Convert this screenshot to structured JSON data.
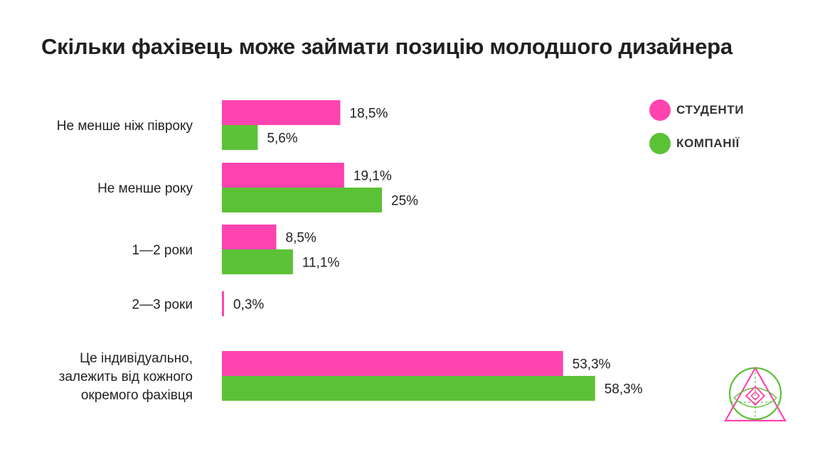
{
  "title": "Скільки фахівець може займати позицію молодшого дизайнера",
  "colors": {
    "students": "#FF44B0",
    "companies": "#5BC236",
    "text": "#222222"
  },
  "legend": [
    {
      "label": "СТУДЕНТИ",
      "color": "#FF44B0"
    },
    {
      "label": "КОМПАНІЇ",
      "color": "#5BC236"
    }
  ],
  "logo": {
    "icon": "triangle-circle-eye-logo"
  },
  "chart_data": {
    "type": "bar",
    "orientation": "horizontal",
    "title": "Скільки фахівець може займати позицію молодшого дизайнера",
    "legend_position": "top-right",
    "grid": false,
    "categories": [
      [
        "Не менше ніж півроку"
      ],
      [
        "Не менше року"
      ],
      [
        "1—2 роки"
      ],
      [
        "2—3 роки"
      ],
      [
        "Це індивідуально,",
        "залежить від кожного",
        "окремого фахівця"
      ]
    ],
    "series": [
      {
        "name": "СТУДЕНТИ",
        "color": "#FF44B0",
        "values": [
          18.5,
          19.1,
          8.5,
          0.3,
          53.3
        ],
        "labels": [
          "18,5%",
          "19,1%",
          "8,5%",
          "0,3%",
          "53,3%"
        ]
      },
      {
        "name": "КОМПАНІЇ",
        "color": "#5BC236",
        "values": [
          5.6,
          25,
          11.1,
          null,
          58.3
        ],
        "labels": [
          "5,6%",
          "25%",
          "11,1%",
          "",
          "58,3%"
        ]
      }
    ],
    "xlim": [
      0,
      60
    ]
  }
}
